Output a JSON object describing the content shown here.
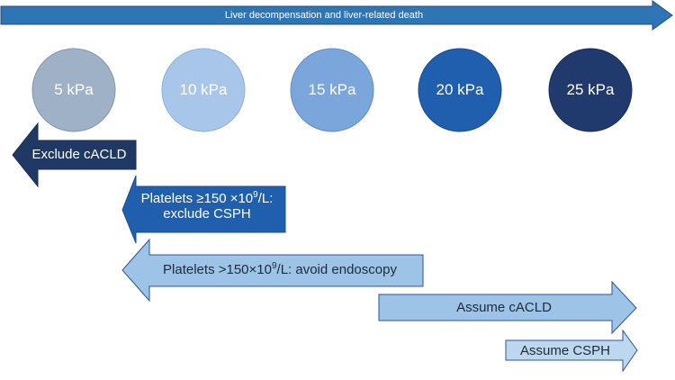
{
  "timeline": {
    "label": "Liver decompensation and liver-related death"
  },
  "stiffness_levels": [
    {
      "label": "5 kPa",
      "color": "#9fb1c6"
    },
    {
      "label": "10 kPa",
      "color": "#a7c6e9"
    },
    {
      "label": "15 kPa",
      "color": "#7aa6dc"
    },
    {
      "label": "20 kPa",
      "color": "#1f5fae"
    },
    {
      "label": "25 kPa",
      "color": "#213a6e"
    }
  ],
  "rules": {
    "exclude_cacld": {
      "label": "Exclude cACLD"
    },
    "exclude_csph": {
      "line1_prefix": "Platelets ≥150 ×10",
      "line1_exp": "9",
      "line1_suffix": "/L:",
      "line2": "exclude CSPH"
    },
    "avoid_endoscopy": {
      "prefix": "Platelets >150×10",
      "exp": "9",
      "suffix": "/L: avoid endoscopy"
    },
    "assume_cacld": {
      "label": "Assume cACLD"
    },
    "assume_csph": {
      "label": "Assume CSPH"
    }
  },
  "colors": {
    "timeline_fill": "#2e75b6",
    "timeline_stroke": "#1f4e79",
    "arrow_dark_blue": "#203864",
    "arrow_medium_blue": "#1f5fae",
    "arrow_light_blue": "#9dc3e6",
    "arrow_pale_blue": "#bdd7ee",
    "arrow_stroke": "#2f5597"
  }
}
